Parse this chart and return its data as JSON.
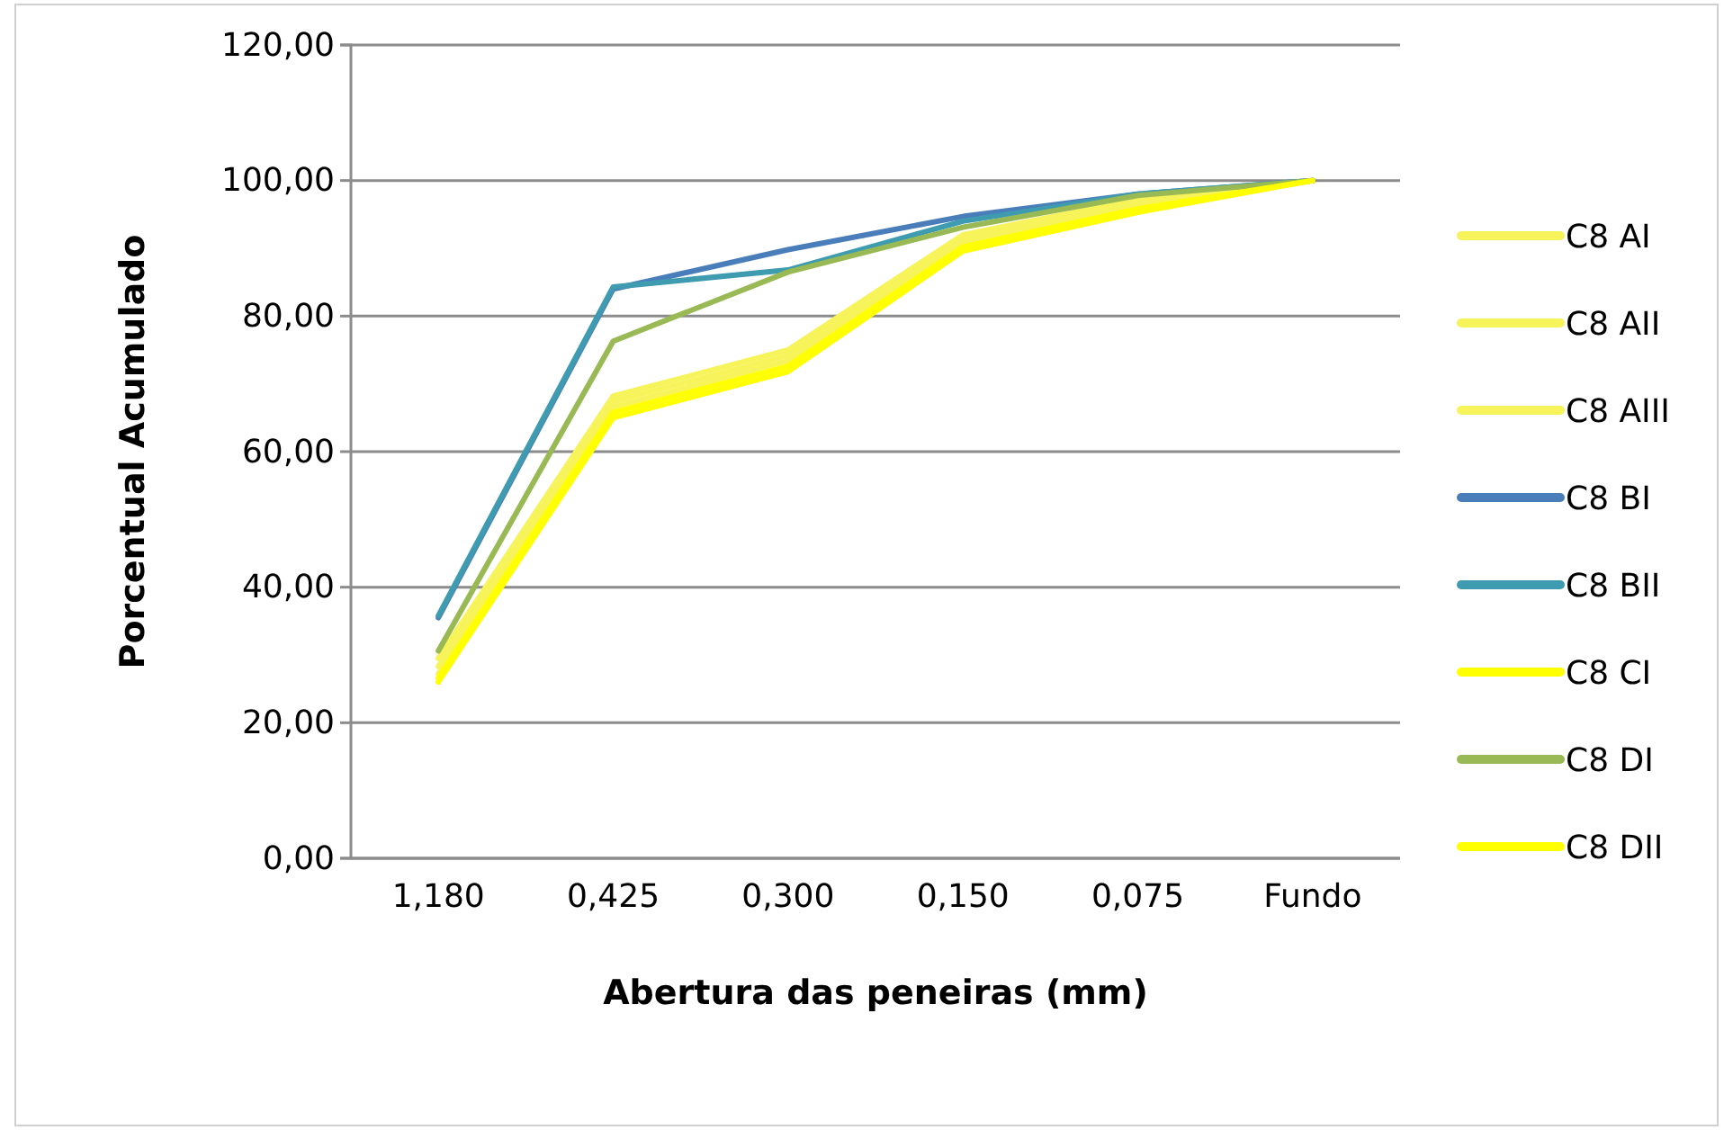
{
  "chart_data": {
    "type": "line",
    "xlabel": "Abertura das peneiras (mm)",
    "ylabel": "Porcentual Acumulado",
    "categories": [
      "1,180",
      "0,425",
      "0,300",
      "0,150",
      "0,075",
      "Fundo"
    ],
    "ylim": [
      0,
      120
    ],
    "yticks": [
      {
        "value": 0,
        "label": "0,00"
      },
      {
        "value": 20,
        "label": "20,00"
      },
      {
        "value": 40,
        "label": "40,00"
      },
      {
        "value": 60,
        "label": "60,00"
      },
      {
        "value": 80,
        "label": "80,00"
      },
      {
        "value": 100,
        "label": "100,00"
      },
      {
        "value": 120,
        "label": "120,00"
      }
    ],
    "grid": "y",
    "legend": "right",
    "marker": "none",
    "line_style": "solid",
    "series": [
      {
        "name": "C8 AI",
        "color": "#f7f35a",
        "values": [
          29.5,
          68.2,
          75,
          92,
          97.2,
          100
        ]
      },
      {
        "name": "C8 AII",
        "color": "#f7f35a",
        "values": [
          28.3,
          67.4,
          74.2,
          91.4,
          96.7,
          100
        ]
      },
      {
        "name": "C8 AIII",
        "color": "#f7f35a",
        "values": [
          27.2,
          66.6,
          73.4,
          90.8,
          96.2,
          100
        ]
      },
      {
        "name": "C8 BI",
        "color": "#4a7ebb",
        "values": [
          35.5,
          84,
          89.8,
          94.7,
          98,
          100
        ]
      },
      {
        "name": "C8 BII",
        "color": "#3f9bb0",
        "values": [
          35.8,
          84.3,
          86.8,
          94,
          98,
          100
        ]
      },
      {
        "name": "C8 CI",
        "color": "#ffff00",
        "values": [
          26,
          65,
          71.8,
          89.6,
          95.3,
          100
        ]
      },
      {
        "name": "C8 DI",
        "color": "#98b954",
        "values": [
          30.6,
          76.3,
          86.5,
          93.1,
          97.8,
          100
        ]
      },
      {
        "name": "C8 DII",
        "color": "#ffff00",
        "values": [
          26.6,
          65.8,
          72.6,
          90.2,
          95.8,
          100
        ]
      }
    ]
  }
}
